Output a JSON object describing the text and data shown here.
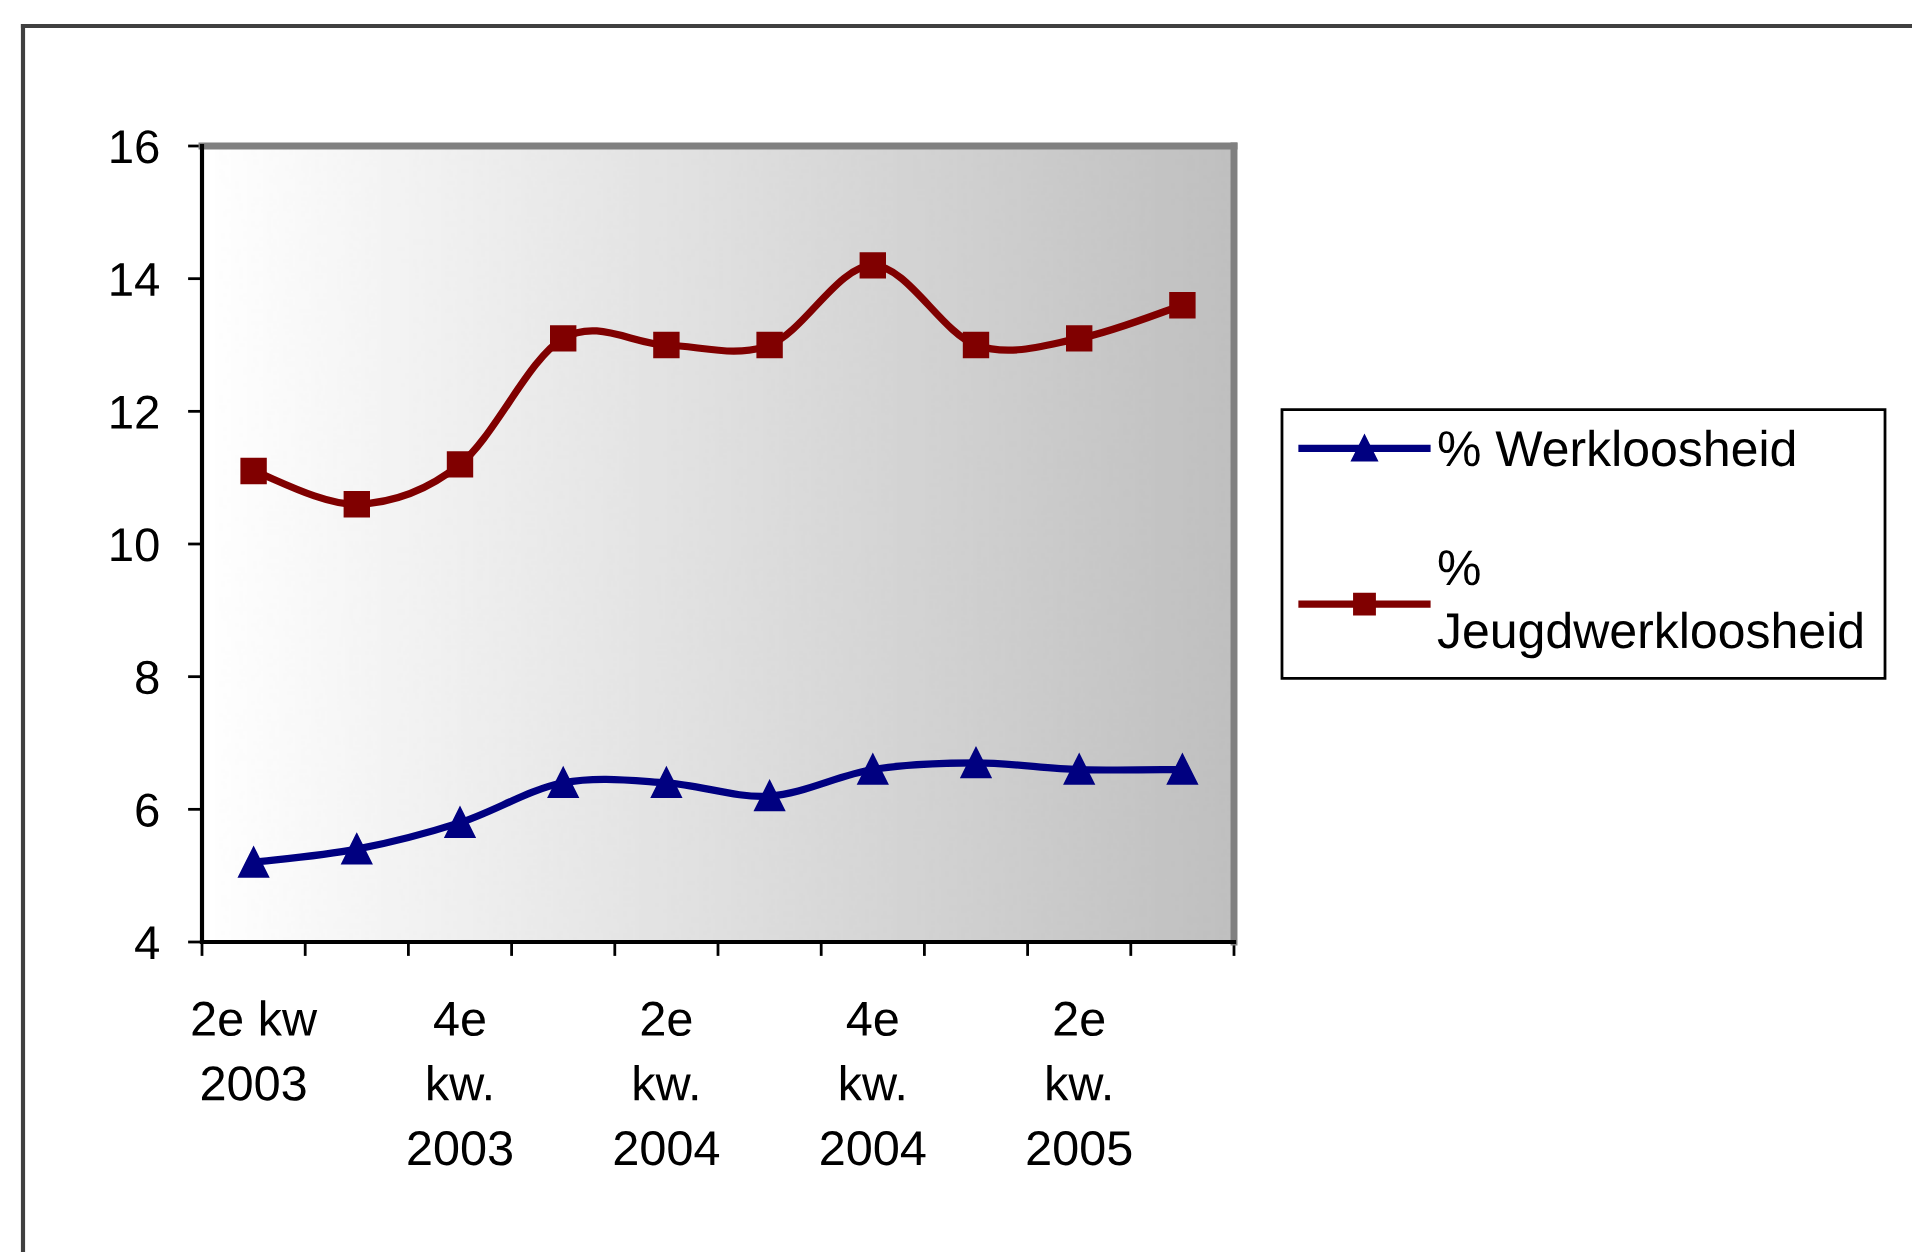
{
  "chart_data": {
    "type": "line",
    "categories": [
      "2e kw\n2003",
      null,
      "4e\nkw.\n2003",
      null,
      "2e\nkw.\n2004",
      null,
      "4e\nkw.\n2004",
      null,
      "2e\nkw.\n2005",
      null
    ],
    "series": [
      {
        "name": "% Werkloosheid",
        "color": "#000080",
        "marker": "triangle",
        "values": [
          5.2,
          5.4,
          5.8,
          6.4,
          6.4,
          6.2,
          6.6,
          6.7,
          6.6,
          6.6
        ]
      },
      {
        "name": "%\nJeugdwerkloosheid",
        "color": "#800000",
        "marker": "square",
        "values": [
          11.1,
          10.6,
          11.2,
          13.1,
          13.0,
          13.0,
          14.2,
          13.0,
          13.1,
          13.6
        ]
      }
    ],
    "ylim": [
      4,
      16
    ],
    "yticks": [
      4,
      6,
      8,
      10,
      12,
      14,
      16
    ],
    "legend": "right"
  }
}
